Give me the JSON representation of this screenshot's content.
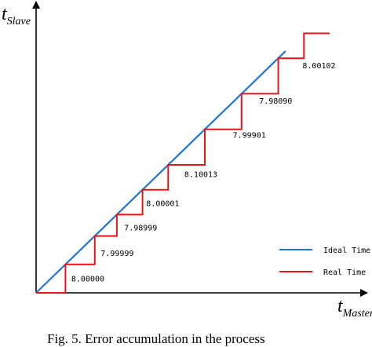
{
  "chart_data": {
    "type": "line",
    "title": "",
    "xlabel": {
      "main": "t",
      "sub": "Master"
    },
    "ylabel": {
      "main": "t",
      "sub": "Slave"
    },
    "xlim": [
      0,
      40
    ],
    "ylim": [
      0,
      36
    ],
    "series": [
      {
        "name": "Ideal Time",
        "color": "#1f77d4",
        "x": [
          0,
          34
        ],
        "y": [
          0,
          34
        ]
      },
      {
        "name": "Real Time",
        "color": "#e8141c",
        "x": [
          0,
          4,
          4,
          8,
          8,
          11,
          11,
          14.5,
          14.5,
          18,
          18,
          23,
          23,
          28,
          28,
          33,
          33,
          36.5,
          36.5,
          40
        ],
        "y": [
          0,
          0,
          4,
          4,
          8,
          8,
          11,
          11,
          14.5,
          14.5,
          18,
          18,
          23,
          23,
          28,
          28,
          33,
          33,
          36.5,
          36.5
        ]
      }
    ],
    "annotations": [
      {
        "text": "8.00000",
        "x": 4.8,
        "y": 1.6
      },
      {
        "text": "7.99999",
        "x": 8.8,
        "y": 5.2
      },
      {
        "text": "7.98999",
        "x": 12,
        "y": 8.8
      },
      {
        "text": "8.00001",
        "x": 15,
        "y": 12.2
      },
      {
        "text": "8.10013",
        "x": 20.2,
        "y": 16.3
      },
      {
        "text": "7.99901",
        "x": 26.8,
        "y": 21.8
      },
      {
        "text": "7.98090",
        "x": 30.4,
        "y": 26.6
      },
      {
        "text": "8.00102",
        "x": 36.3,
        "y": 31.6
      }
    ],
    "legend": {
      "position": "bottom-right"
    }
  },
  "caption": "Fig. 5. Error accumulation in the process"
}
